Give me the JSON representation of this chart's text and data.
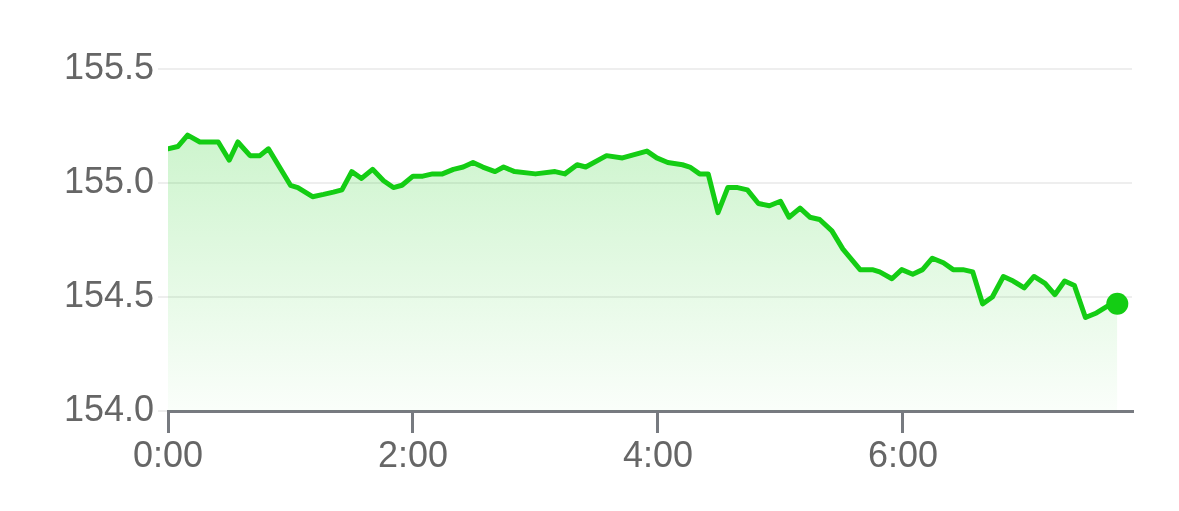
{
  "chart_data": {
    "type": "area",
    "x": [
      0,
      0.08,
      0.16,
      0.26,
      0.41,
      0.5,
      0.57,
      0.67,
      0.75,
      0.82,
      1.0,
      1.06,
      1.18,
      1.27,
      1.35,
      1.42,
      1.5,
      1.58,
      1.67,
      1.76,
      1.84,
      1.91,
      2.0,
      2.08,
      2.16,
      2.24,
      2.33,
      2.41,
      2.49,
      2.57,
      2.67,
      2.74,
      2.83,
      3.0,
      3.16,
      3.24,
      3.34,
      3.41,
      3.58,
      3.71,
      3.91,
      3.99,
      4.08,
      4.2,
      4.26,
      4.34,
      4.41,
      4.49,
      4.57,
      4.65,
      4.73,
      4.82,
      4.91,
      5.0,
      5.07,
      5.16,
      5.24,
      5.32,
      5.42,
      5.51,
      5.65,
      5.75,
      5.81,
      5.91,
      5.99,
      6.08,
      6.16,
      6.24,
      6.33,
      6.41,
      6.49,
      6.57,
      6.65,
      6.73,
      6.82,
      6.9,
      6.99,
      7.07,
      7.16,
      7.24,
      7.32,
      7.4,
      7.49,
      7.58,
      7.67,
      7.75
    ],
    "series": [
      {
        "color": "#14cd14",
        "marker": "none",
        "values": [
          155.15,
          155.16,
          155.21,
          155.18,
          155.18,
          155.1,
          155.18,
          155.12,
          155.12,
          155.15,
          154.99,
          154.98,
          154.94,
          154.95,
          154.96,
          154.97,
          155.05,
          155.02,
          155.06,
          155.01,
          154.98,
          154.99,
          155.03,
          155.03,
          155.04,
          155.04,
          155.06,
          155.07,
          155.09,
          155.07,
          155.05,
          155.07,
          155.05,
          155.04,
          155.05,
          155.04,
          155.08,
          155.07,
          155.12,
          155.11,
          155.14,
          155.11,
          155.09,
          155.08,
          155.07,
          155.04,
          155.04,
          154.87,
          154.98,
          154.98,
          154.97,
          154.91,
          154.9,
          154.92,
          154.85,
          154.89,
          154.85,
          154.84,
          154.79,
          154.71,
          154.62,
          154.62,
          154.61,
          154.58,
          154.62,
          154.6,
          154.62,
          154.67,
          154.65,
          154.62,
          154.62,
          154.61,
          154.47,
          154.5,
          154.59,
          154.57,
          154.54,
          154.59,
          154.56,
          154.51,
          154.57,
          154.55,
          154.41,
          154.43,
          154.46,
          154.47
        ]
      },
      {
        "type": "scatter",
        "color": "#14cd14",
        "marker": "circle",
        "x": [
          7.75
        ],
        "values": [
          154.47
        ]
      }
    ],
    "xlim": [
      0,
      7.87
    ],
    "xticks": [
      {
        "value": 0,
        "label": "0:00"
      },
      {
        "value": 2,
        "label": "2:00"
      },
      {
        "value": 4,
        "label": "4:00"
      },
      {
        "value": 6,
        "label": "6:00"
      }
    ],
    "ylim": [
      154,
      155.5
    ],
    "yticks": [
      {
        "value": 154,
        "label": "154.0"
      },
      154.5,
      {
        "value": 155,
        "label": "155.0"
      },
      155.5
    ],
    "grid": "y"
  }
}
